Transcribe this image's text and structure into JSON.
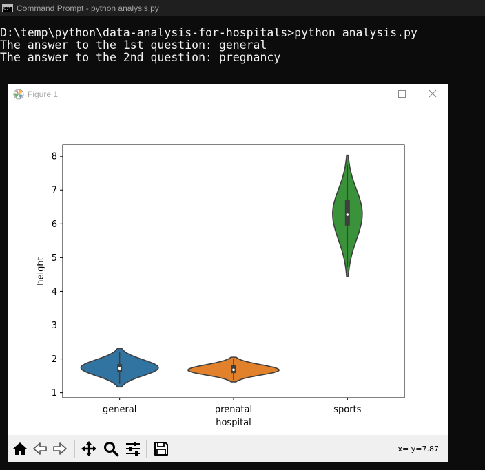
{
  "console_window": {
    "title": "Command Prompt - python  analysis.py",
    "lines": [
      "D:\\temp\\python\\data-analysis-for-hospitals>python analysis.py",
      "The answer to the 1st question: general",
      "The answer to the 2nd question: pregnancy"
    ]
  },
  "figure_window": {
    "title": "Figure 1",
    "coords_readout": "x= y=7.87"
  },
  "colors": {
    "general": "#3274a1",
    "prenatal": "#e1812c",
    "sports": "#3a923a",
    "violin_edge": "#3f3f3f"
  },
  "chart_data": {
    "type": "violin",
    "categories": [
      "general",
      "prenatal",
      "sports"
    ],
    "xlabel": "hospital",
    "ylabel": "height",
    "ylim": [
      0.85,
      8.35
    ],
    "yticks": [
      1,
      2,
      3,
      4,
      5,
      6,
      7,
      8
    ],
    "series": [
      {
        "category": "general",
        "min": 1.17,
        "q1": 1.62,
        "median": 1.72,
        "q3": 1.85,
        "max": 2.31,
        "mode": 1.74,
        "max_halfwidth": 0.34
      },
      {
        "category": "prenatal",
        "min": 1.32,
        "q1": 1.58,
        "median": 1.68,
        "q3": 1.82,
        "max": 2.05,
        "mode": 1.67,
        "max_halfwidth": 0.4
      },
      {
        "category": "sports",
        "min": 4.44,
        "q1": 5.95,
        "median": 6.27,
        "q3": 6.7,
        "max": 8.03,
        "mode": 6.3,
        "max_halfwidth": 0.13
      }
    ]
  }
}
